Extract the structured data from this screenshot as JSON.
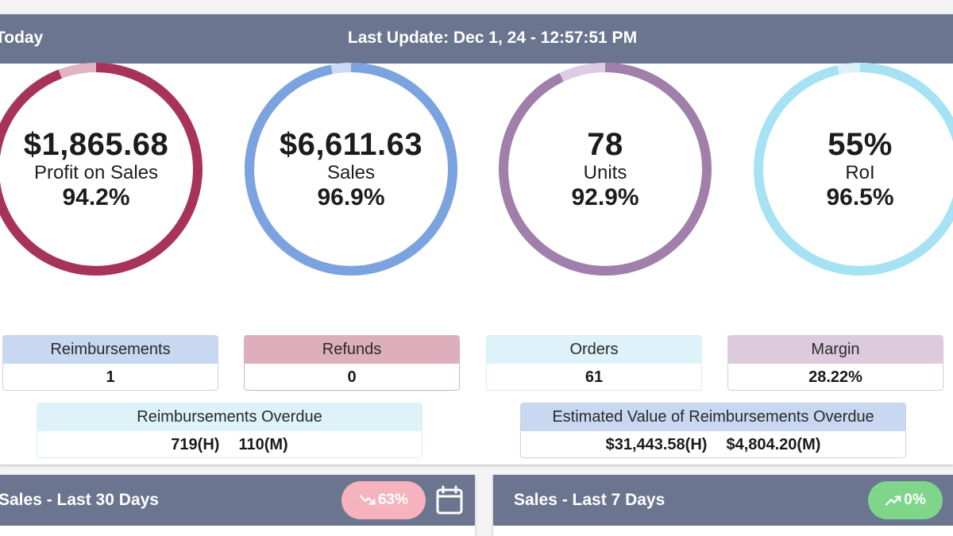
{
  "header": {
    "left_label": "Today",
    "last_update": "Last Update: Dec 1, 24 - 12:57:51 PM"
  },
  "rings": [
    {
      "value": "$1,865.68",
      "label": "Profit on Sales",
      "percent": "94.2%",
      "fill": 0.942,
      "color": "#a8335a",
      "track": "#dfb3c2"
    },
    {
      "value": "$6,611.63",
      "label": "Sales",
      "percent": "96.9%",
      "fill": 0.969,
      "color": "#7ba3e0",
      "track": "#cbdaf3"
    },
    {
      "value": "78",
      "label": "Units",
      "percent": "92.9%",
      "fill": 0.929,
      "color": "#a07fab",
      "track": "#dccbe1"
    },
    {
      "value": "55%",
      "label": "RoI",
      "percent": "96.5%",
      "fill": 0.965,
      "color": "#a7e2f4",
      "track": "#dbf1f9"
    }
  ],
  "stats": {
    "reimbursements": {
      "label": "Reimbursements",
      "value": "1",
      "color": "#c8d8f1"
    },
    "refunds": {
      "label": "Refunds",
      "value": "0",
      "color": "#ddaebb"
    },
    "orders": {
      "label": "Orders",
      "value": "61",
      "color": "#ddf2f9"
    },
    "margin": {
      "label": "Margin",
      "value": "28.22%",
      "color": "#dccbdc"
    }
  },
  "overdue": {
    "label": "Reimbursements Overdue",
    "high": "719(H)",
    "medium": "110(M)",
    "color": "#ddf2f9"
  },
  "estimated": {
    "label": "Estimated Value of Reimbursements Overdue",
    "high": "$31,443.58(H)",
    "medium": "$4,804.20(M)",
    "color": "#c8d8f1"
  },
  "sales30": {
    "title": "Sales - Last 30 Days",
    "trend": "63%",
    "trend_icon": "trending-down-icon",
    "trend_color": "#f7b3bd"
  },
  "sales7": {
    "title": "Sales - Last 7 Days",
    "trend": "0%",
    "trend_icon": "trending-up-icon",
    "trend_color": "#7fd68b"
  }
}
